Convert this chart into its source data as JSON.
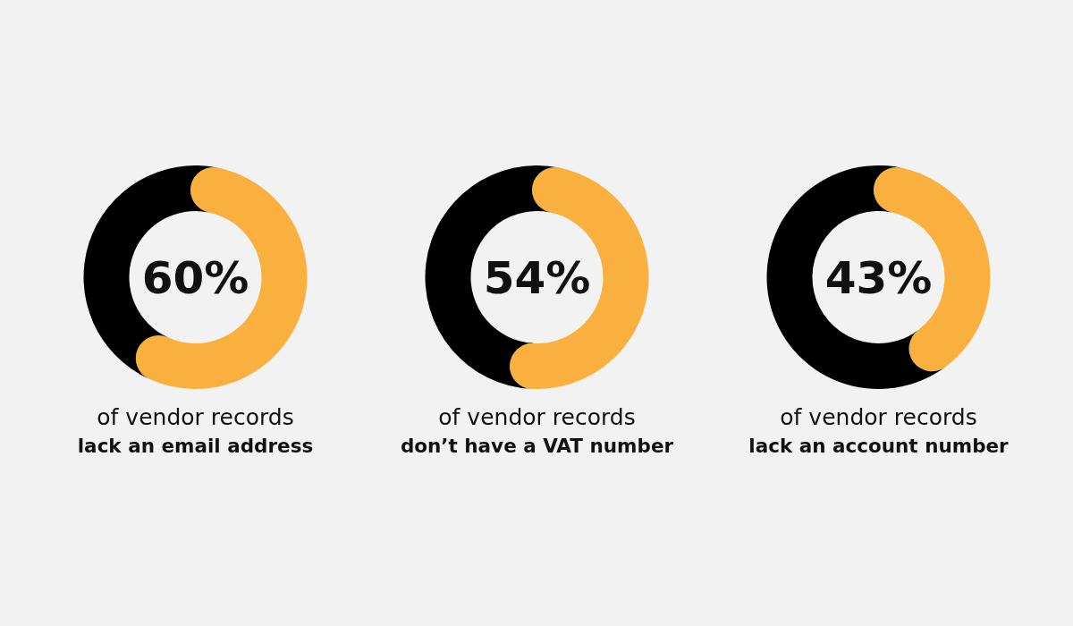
{
  "chart_data": [
    {
      "type": "donut",
      "title": "60%",
      "categories": [
        null,
        null
      ],
      "values": [
        60,
        40
      ],
      "colors": [
        "#f9b03f",
        "#000000"
      ],
      "annotations": [
        "of vendor records",
        "lack an email address"
      ]
    },
    {
      "type": "donut",
      "title": "54%",
      "categories": [
        null,
        null
      ],
      "values": [
        54,
        46
      ],
      "colors": [
        "#f9b03f",
        "#000000"
      ],
      "annotations": [
        "of vendor records",
        "don’t have a VAT number"
      ]
    },
    {
      "type": "donut",
      "title": "43%",
      "categories": [
        null,
        null
      ],
      "values": [
        43,
        57
      ],
      "colors": [
        "#f9b03f",
        "#000000"
      ],
      "annotations": [
        "of vendor records",
        "lack an account number"
      ]
    }
  ]
}
